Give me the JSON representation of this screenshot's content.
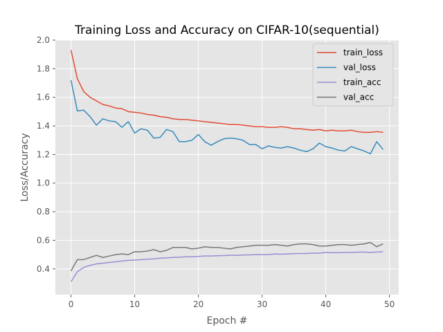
{
  "chart_data": {
    "type": "line",
    "title": "Training Loss and Accuracy on CIFAR-10(sequential)",
    "xlabel": "Epoch #",
    "ylabel": "Loss/Accuracy",
    "xlim": [
      -2.45,
      51.45
    ],
    "ylim": [
      0.22,
      2.0
    ],
    "xticks": [
      0,
      10,
      20,
      30,
      40,
      50
    ],
    "yticks": [
      0.4,
      0.6,
      0.8,
      1.0,
      1.2,
      1.4,
      1.6,
      1.8,
      2.0
    ],
    "xtick_labels": [
      "0",
      "10",
      "20",
      "30",
      "40",
      "50"
    ],
    "ytick_labels": [
      "0.4",
      "0.6",
      "0.8",
      "1.0",
      "1.2",
      "1.4",
      "1.6",
      "1.8",
      "2.0"
    ],
    "grid": true,
    "legend_position": "top-right",
    "background": "#e5e5e5",
    "x": [
      0,
      1,
      2,
      3,
      4,
      5,
      6,
      7,
      8,
      9,
      10,
      11,
      12,
      13,
      14,
      15,
      16,
      17,
      18,
      19,
      20,
      21,
      22,
      23,
      24,
      25,
      26,
      27,
      28,
      29,
      30,
      31,
      32,
      33,
      34,
      35,
      36,
      37,
      38,
      39,
      40,
      41,
      42,
      43,
      44,
      45,
      46,
      47,
      48,
      49
    ],
    "series": [
      {
        "name": "train_loss",
        "color": "#e24a33",
        "values": [
          1.93,
          1.73,
          1.64,
          1.6,
          1.575,
          1.55,
          1.54,
          1.525,
          1.52,
          1.5,
          1.495,
          1.49,
          1.48,
          1.475,
          1.465,
          1.46,
          1.45,
          1.445,
          1.445,
          1.44,
          1.435,
          1.43,
          1.425,
          1.42,
          1.415,
          1.41,
          1.41,
          1.405,
          1.4,
          1.395,
          1.395,
          1.39,
          1.39,
          1.395,
          1.39,
          1.38,
          1.38,
          1.375,
          1.37,
          1.375,
          1.365,
          1.37,
          1.365,
          1.365,
          1.37,
          1.36,
          1.355,
          1.355,
          1.36,
          1.355
        ]
      },
      {
        "name": "val_loss",
        "color": "#348abd",
        "values": [
          1.72,
          1.505,
          1.51,
          1.465,
          1.405,
          1.45,
          1.435,
          1.43,
          1.39,
          1.43,
          1.35,
          1.38,
          1.37,
          1.315,
          1.32,
          1.375,
          1.36,
          1.29,
          1.29,
          1.3,
          1.34,
          1.29,
          1.265,
          1.29,
          1.31,
          1.315,
          1.31,
          1.3,
          1.27,
          1.27,
          1.24,
          1.26,
          1.25,
          1.245,
          1.255,
          1.245,
          1.23,
          1.22,
          1.24,
          1.28,
          1.255,
          1.245,
          1.23,
          1.225,
          1.255,
          1.24,
          1.225,
          1.205,
          1.29,
          1.235
        ]
      },
      {
        "name": "train_acc",
        "color": "#988ed5",
        "values": [
          0.31,
          0.38,
          0.41,
          0.425,
          0.435,
          0.44,
          0.445,
          0.45,
          0.455,
          0.46,
          0.462,
          0.465,
          0.468,
          0.47,
          0.475,
          0.477,
          0.48,
          0.482,
          0.485,
          0.485,
          0.487,
          0.49,
          0.49,
          0.492,
          0.493,
          0.495,
          0.495,
          0.497,
          0.498,
          0.5,
          0.5,
          0.5,
          0.505,
          0.503,
          0.505,
          0.507,
          0.508,
          0.508,
          0.51,
          0.51,
          0.515,
          0.513,
          0.513,
          0.515,
          0.515,
          0.517,
          0.518,
          0.515,
          0.518,
          0.52
        ]
      },
      {
        "name": "val_acc",
        "color": "#777777",
        "values": [
          0.385,
          0.465,
          0.465,
          0.48,
          0.495,
          0.48,
          0.49,
          0.5,
          0.505,
          0.5,
          0.52,
          0.52,
          0.525,
          0.535,
          0.52,
          0.53,
          0.55,
          0.55,
          0.55,
          0.54,
          0.545,
          0.555,
          0.55,
          0.55,
          0.545,
          0.54,
          0.55,
          0.555,
          0.56,
          0.565,
          0.565,
          0.565,
          0.57,
          0.565,
          0.56,
          0.57,
          0.575,
          0.575,
          0.57,
          0.56,
          0.56,
          0.565,
          0.57,
          0.57,
          0.565,
          0.57,
          0.575,
          0.585,
          0.555,
          0.575
        ]
      }
    ]
  }
}
